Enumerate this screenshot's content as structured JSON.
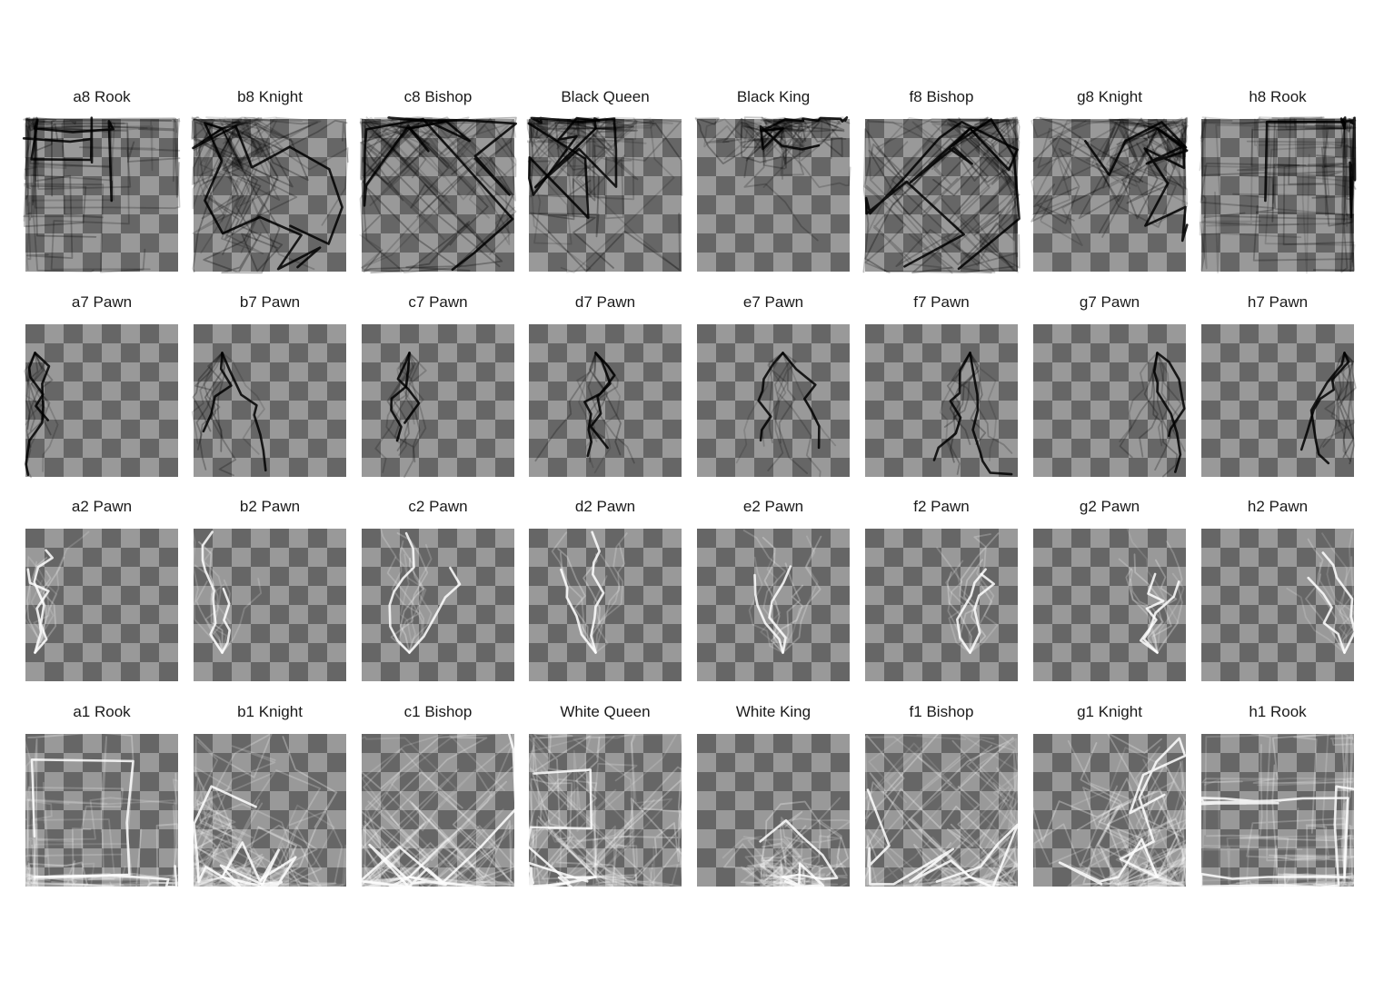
{
  "chart_data": {
    "type": "faceted-trajectory-heatmap",
    "rows": 4,
    "columns": 8,
    "board_colors": {
      "dark": "#666666",
      "light": "#999999"
    },
    "panels": [
      {
        "title": "a8 Rook",
        "start_square": "a8",
        "color": "black",
        "piece": "rook"
      },
      {
        "title": "b8 Knight",
        "start_square": "b8",
        "color": "black",
        "piece": "knight"
      },
      {
        "title": "c8 Bishop",
        "start_square": "c8",
        "color": "black",
        "piece": "bishop"
      },
      {
        "title": "Black Queen",
        "start_square": "d8",
        "color": "black",
        "piece": "queen"
      },
      {
        "title": "Black King",
        "start_square": "e8",
        "color": "black",
        "piece": "king"
      },
      {
        "title": "f8 Bishop",
        "start_square": "f8",
        "color": "black",
        "piece": "bishop"
      },
      {
        "title": "g8 Knight",
        "start_square": "g8",
        "color": "black",
        "piece": "knight"
      },
      {
        "title": "h8 Rook",
        "start_square": "h8",
        "color": "black",
        "piece": "rook"
      },
      {
        "title": "a7 Pawn",
        "start_square": "a7",
        "color": "black",
        "piece": "pawn"
      },
      {
        "title": "b7 Pawn",
        "start_square": "b7",
        "color": "black",
        "piece": "pawn"
      },
      {
        "title": "c7 Pawn",
        "start_square": "c7",
        "color": "black",
        "piece": "pawn"
      },
      {
        "title": "d7 Pawn",
        "start_square": "d7",
        "color": "black",
        "piece": "pawn"
      },
      {
        "title": "e7 Pawn",
        "start_square": "e7",
        "color": "black",
        "piece": "pawn"
      },
      {
        "title": "f7 Pawn",
        "start_square": "f7",
        "color": "black",
        "piece": "pawn"
      },
      {
        "title": "g7 Pawn",
        "start_square": "g7",
        "color": "black",
        "piece": "pawn"
      },
      {
        "title": "h7 Pawn",
        "start_square": "h7",
        "color": "black",
        "piece": "pawn"
      },
      {
        "title": "a2 Pawn",
        "start_square": "a2",
        "color": "white",
        "piece": "pawn"
      },
      {
        "title": "b2 Pawn",
        "start_square": "b2",
        "color": "white",
        "piece": "pawn"
      },
      {
        "title": "c2 Pawn",
        "start_square": "c2",
        "color": "white",
        "piece": "pawn"
      },
      {
        "title": "d2 Pawn",
        "start_square": "d2",
        "color": "white",
        "piece": "pawn"
      },
      {
        "title": "e2 Pawn",
        "start_square": "e2",
        "color": "white",
        "piece": "pawn"
      },
      {
        "title": "f2 Pawn",
        "start_square": "f2",
        "color": "white",
        "piece": "pawn"
      },
      {
        "title": "g2 Pawn",
        "start_square": "g2",
        "color": "white",
        "piece": "pawn"
      },
      {
        "title": "h2 Pawn",
        "start_square": "h2",
        "color": "white",
        "piece": "pawn"
      },
      {
        "title": "a1 Rook",
        "start_square": "a1",
        "color": "white",
        "piece": "rook"
      },
      {
        "title": "b1 Knight",
        "start_square": "b1",
        "color": "white",
        "piece": "knight"
      },
      {
        "title": "c1 Bishop",
        "start_square": "c1",
        "color": "white",
        "piece": "bishop"
      },
      {
        "title": "White Queen",
        "start_square": "d1",
        "color": "white",
        "piece": "queen"
      },
      {
        "title": "White King",
        "start_square": "e1",
        "color": "white",
        "piece": "king"
      },
      {
        "title": "f1 Bishop",
        "start_square": "f1",
        "color": "white",
        "piece": "bishop"
      },
      {
        "title": "g1 Knight",
        "start_square": "g1",
        "color": "white",
        "piece": "knight"
      },
      {
        "title": "h1 Rook",
        "start_square": "h1",
        "color": "white",
        "piece": "rook"
      }
    ]
  }
}
